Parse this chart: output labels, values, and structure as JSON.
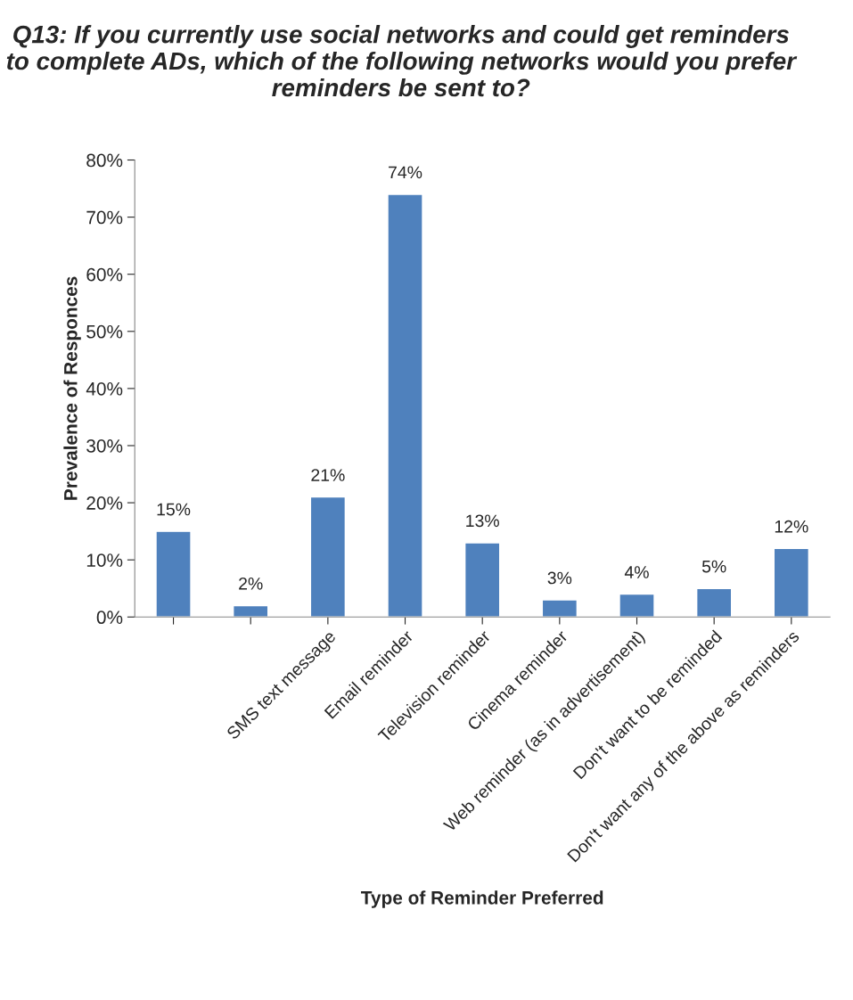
{
  "chart_data": {
    "type": "bar",
    "title": "Q13: If you currently use social networks and could get reminders to complete ADs, which of the following networks would you prefer reminders be sent to?",
    "xlabel": "Type of Reminder Preferred",
    "ylabel": "Prevalence of Responces",
    "categories": [
      null,
      null,
      "SMS text message",
      "Email reminder",
      "Television reminder",
      "Cinema reminder",
      "Web reminder (as in advertisement)",
      "Don't want to be reminded",
      "Don't want any of the above as reminders"
    ],
    "values": [
      15,
      2,
      21,
      74,
      13,
      3,
      4,
      5,
      12
    ],
    "value_labels": [
      "15%",
      "2%",
      "21%",
      "74%",
      "13%",
      "3%",
      "4%",
      "5%",
      "12%"
    ],
    "color": "#4f81bd",
    "ylim": [
      0,
      80
    ],
    "yticks": [
      {
        "value": 0,
        "label": "0%"
      },
      {
        "value": 10,
        "label": "10%"
      },
      {
        "value": 20,
        "label": "20%"
      },
      {
        "value": 30,
        "label": "30%"
      },
      {
        "value": 40,
        "label": "40%"
      },
      {
        "value": 50,
        "label": "50%"
      },
      {
        "value": 60,
        "label": "60%"
      },
      {
        "value": 70,
        "label": "70%"
      },
      {
        "value": 80,
        "label": "80%"
      }
    ],
    "grid": false,
    "legend": false
  }
}
